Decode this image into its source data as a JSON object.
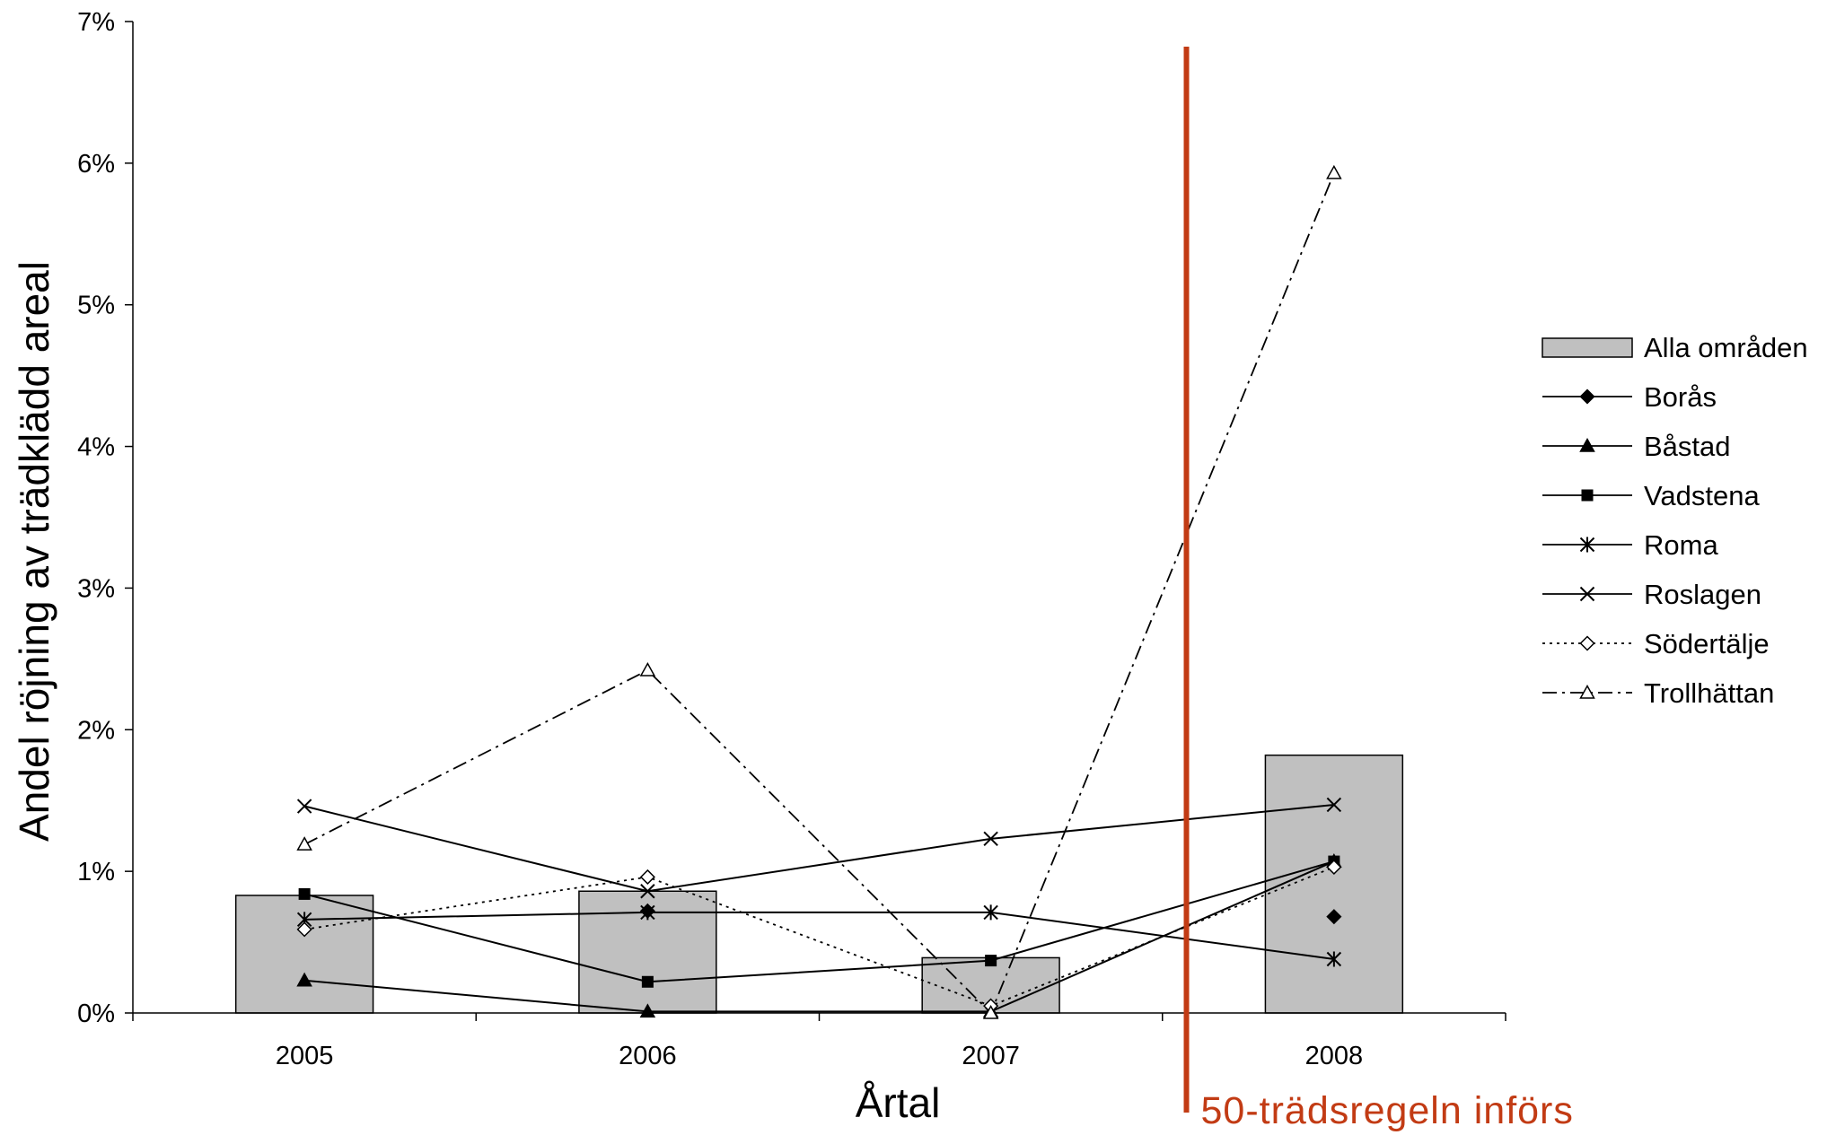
{
  "chart_data": {
    "type": "bar",
    "ylabel": "Andel röjning av trädklädd areal",
    "xlabel": "Årtal",
    "categories": [
      "2005",
      "2006",
      "2007",
      "2008"
    ],
    "ylim": [
      0,
      0.07
    ],
    "yticks": [
      "0%",
      "1%",
      "2%",
      "3%",
      "4%",
      "5%",
      "6%",
      "7%"
    ],
    "legend_position": "right",
    "bars": {
      "name": "Alla områden",
      "values": [
        0.0083,
        0.0086,
        0.0039,
        0.0182
      ],
      "color": "#c0c0c0"
    },
    "series": [
      {
        "name": "Borås",
        "marker": "diamond-filled",
        "line": "solid",
        "values": [
          null,
          0.0072,
          null,
          0.0068
        ]
      },
      {
        "name": "Båstad",
        "marker": "triangle-filled",
        "line": "solid",
        "values": [
          0.0023,
          0.0001,
          0.0001,
          0.0107
        ]
      },
      {
        "name": "Vadstena",
        "marker": "square-filled",
        "line": "solid",
        "values": [
          0.0084,
          0.0022,
          0.0037,
          0.0107
        ]
      },
      {
        "name": "Roma",
        "marker": "asterisk",
        "line": "solid",
        "values": [
          0.0066,
          0.0071,
          0.0071,
          0.0038
        ]
      },
      {
        "name": "Roslagen",
        "marker": "x",
        "line": "solid",
        "values": [
          0.0146,
          0.0086,
          0.0123,
          0.0147
        ]
      },
      {
        "name": "Södertälje",
        "marker": "diamond-open",
        "line": "dotted",
        "values": [
          0.0059,
          0.0096,
          0.0005,
          0.0103
        ]
      },
      {
        "name": "Trollhättan",
        "marker": "triangle-open",
        "line": "dashdot",
        "values": [
          0.0119,
          0.0242,
          0.0,
          0.0593
        ]
      }
    ],
    "annotation": {
      "text": "50-trädsregeln införs",
      "position_between": [
        "2007",
        "2008"
      ],
      "color": "#c23b14"
    }
  }
}
